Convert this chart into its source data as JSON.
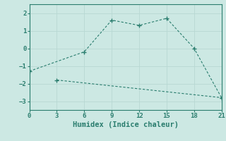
{
  "xlabel": "Humidex (Indice chaleur)",
  "line1_x": [
    0,
    6,
    9,
    12,
    15,
    18,
    21
  ],
  "line1_y": [
    -1.3,
    -0.2,
    1.6,
    1.3,
    1.7,
    0.0,
    -2.8
  ],
  "line2_x": [
    3,
    21
  ],
  "line2_y": [
    -1.8,
    -2.8
  ],
  "line_color": "#2a7d6e",
  "bg_color": "#cce8e3",
  "grid_color": "#b8d8d3",
  "xlim": [
    0,
    21
  ],
  "ylim": [
    -3.5,
    2.5
  ],
  "xticks": [
    0,
    3,
    6,
    9,
    12,
    15,
    18,
    21
  ],
  "yticks": [
    -3,
    -2,
    -1,
    0,
    1,
    2
  ],
  "tick_fontsize": 6.5,
  "label_fontsize": 7.5
}
